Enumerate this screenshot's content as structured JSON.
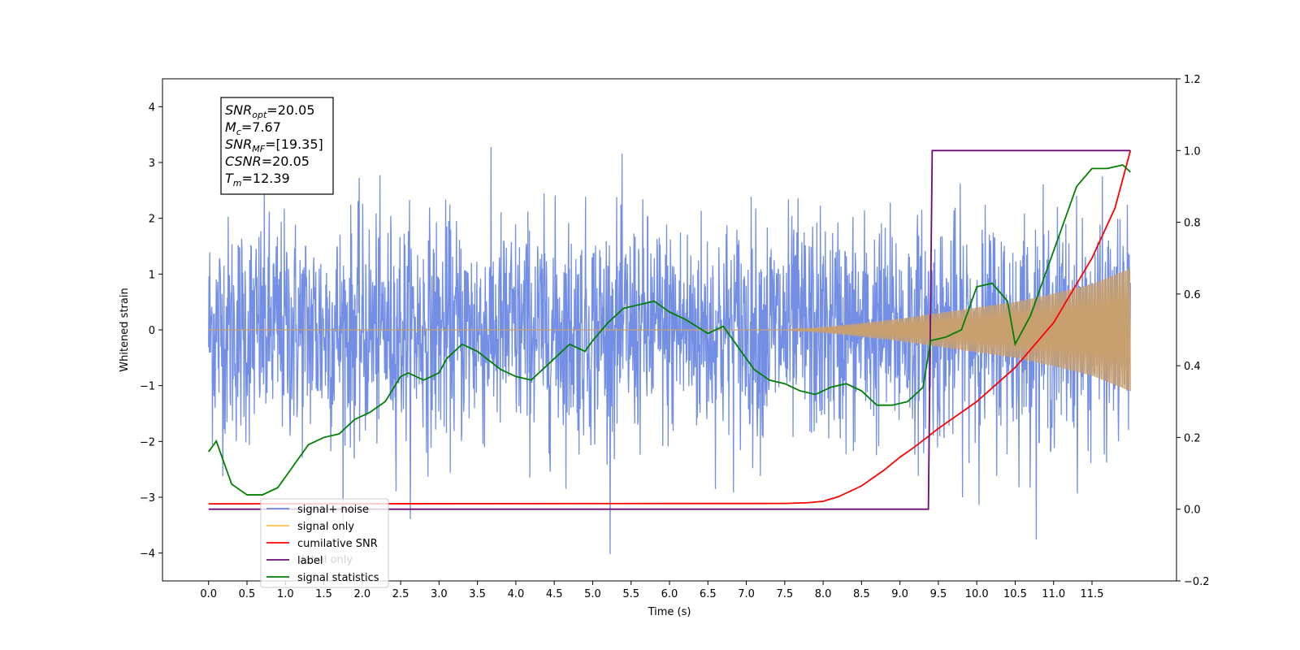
{
  "chart_data": {
    "type": "line",
    "xlabel": "Time (s)",
    "ylabel": "Whitened strain",
    "xlim": [
      -0.6,
      12.6
    ],
    "ylim": [
      -4.5,
      4.5
    ],
    "y2lim": [
      -0.2,
      1.2
    ],
    "x_ticks": [
      "0.0",
      "0.5",
      "1.0",
      "1.5",
      "2.0",
      "2.5",
      "3.0",
      "3.5",
      "4.0",
      "4.5",
      "5.0",
      "5.5",
      "6.0",
      "6.5",
      "7.0",
      "7.5",
      "8.0",
      "8.5",
      "9.0",
      "9.5",
      "10.0",
      "10.5",
      "11.0",
      "11.5"
    ],
    "y_ticks": [
      "4",
      "3",
      "2",
      "1",
      "0",
      "−1",
      "−2",
      "−3",
      "−4"
    ],
    "y2_ticks": [
      "1.2",
      "1.0",
      "0.8",
      "0.6",
      "0.4",
      "0.2",
      "0.0",
      "−0.2"
    ],
    "info_box": [
      {
        "base": "SNR",
        "sub": "opt",
        "rest": "=20.05"
      },
      {
        "base": "M",
        "sub": "c",
        "rest": "=7.67"
      },
      {
        "base": "SNR",
        "sub": "MF",
        "rest": "=[19.35]"
      },
      {
        "base": "CSNR",
        "sub": "",
        "rest": "=20.05"
      },
      {
        "base": "T",
        "sub": "m",
        "rest": "=12.39"
      }
    ],
    "legend": [
      {
        "label": "signal+ noise",
        "color": "#6b88e4"
      },
      {
        "label": "signal only",
        "color": "#ffc04d"
      },
      {
        "label": "cumilative SNR",
        "color": "#ff0000"
      },
      {
        "label": "label",
        "color": "#6d0b75"
      },
      {
        "label": "signal statistics",
        "color": "#008000"
      }
    ],
    "hidden_legend_text": "label only",
    "series": [
      {
        "name": "signal+ noise",
        "axis": "left",
        "color": "#6b88e4",
        "kind": "noise",
        "x_range": [
          0.0,
          12.0
        ],
        "std": 1.0,
        "y_range": [
          -4.05,
          3.65
        ]
      },
      {
        "name": "signal only",
        "axis": "left",
        "color": "#c8a070",
        "kind": "chirp_envelope",
        "envelope": {
          "x": [
            0.0,
            7.5,
            8.0,
            8.5,
            9.0,
            9.5,
            10.0,
            10.5,
            11.0,
            11.5,
            12.0
          ],
          "amp": [
            0.0,
            0.0,
            0.05,
            0.12,
            0.2,
            0.3,
            0.4,
            0.5,
            0.65,
            0.82,
            1.1
          ]
        }
      },
      {
        "name": "cumilative SNR",
        "axis": "right",
        "color": "#ff0000",
        "x": [
          0.0,
          7.5,
          7.8,
          8.0,
          8.2,
          8.5,
          8.8,
          9.0,
          9.2,
          9.5,
          9.8,
          10.0,
          10.5,
          11.0,
          11.5,
          11.8,
          12.0
        ],
        "y": [
          0.015,
          0.016,
          0.018,
          0.022,
          0.035,
          0.065,
          0.11,
          0.145,
          0.175,
          0.225,
          0.27,
          0.3,
          0.395,
          0.52,
          0.7,
          0.84,
          1.0
        ]
      },
      {
        "name": "label",
        "axis": "right",
        "color": "#6d0b75",
        "x": [
          0.0,
          9.37,
          9.42,
          12.0
        ],
        "y": [
          0.0,
          0.0,
          1.0,
          1.0
        ]
      },
      {
        "name": "signal statistics",
        "axis": "right",
        "color": "#008000",
        "x": [
          0.0,
          0.1,
          0.3,
          0.5,
          0.7,
          0.9,
          1.1,
          1.3,
          1.5,
          1.7,
          1.9,
          2.1,
          2.3,
          2.5,
          2.6,
          2.8,
          3.0,
          3.1,
          3.3,
          3.5,
          3.8,
          4.0,
          4.2,
          4.5,
          4.7,
          4.9,
          5.0,
          5.2,
          5.4,
          5.6,
          5.8,
          6.0,
          6.2,
          6.5,
          6.7,
          6.9,
          7.1,
          7.3,
          7.5,
          7.7,
          7.9,
          8.1,
          8.3,
          8.5,
          8.7,
          8.9,
          9.1,
          9.3,
          9.4,
          9.6,
          9.8,
          10.0,
          10.2,
          10.4,
          10.5,
          10.7,
          10.9,
          11.1,
          11.3,
          11.5,
          11.7,
          11.9,
          12.0
        ],
        "y": [
          0.16,
          0.19,
          0.07,
          0.04,
          0.04,
          0.06,
          0.12,
          0.18,
          0.2,
          0.21,
          0.25,
          0.27,
          0.3,
          0.37,
          0.38,
          0.36,
          0.38,
          0.42,
          0.46,
          0.44,
          0.39,
          0.37,
          0.36,
          0.42,
          0.46,
          0.44,
          0.47,
          0.52,
          0.56,
          0.57,
          0.58,
          0.55,
          0.53,
          0.49,
          0.51,
          0.45,
          0.39,
          0.36,
          0.35,
          0.33,
          0.32,
          0.34,
          0.35,
          0.33,
          0.29,
          0.29,
          0.3,
          0.34,
          0.47,
          0.48,
          0.5,
          0.62,
          0.63,
          0.58,
          0.46,
          0.54,
          0.66,
          0.78,
          0.9,
          0.95,
          0.95,
          0.96,
          0.94
        ]
      }
    ]
  }
}
